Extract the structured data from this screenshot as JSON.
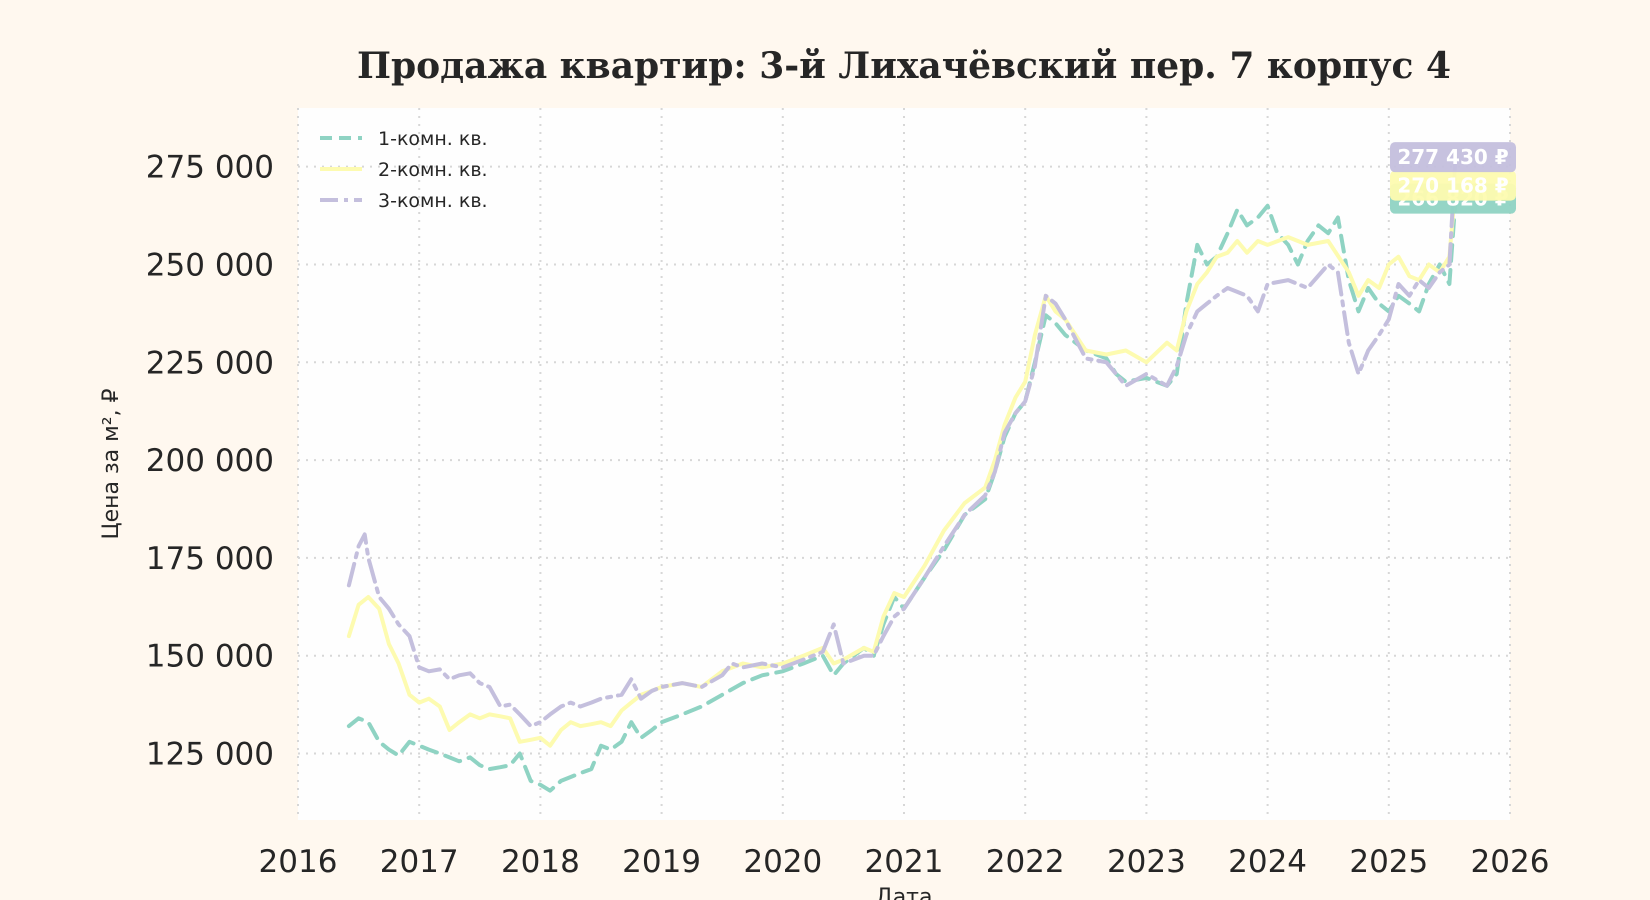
{
  "chart_data": {
    "type": "line",
    "title": "Продажа квартир: 3-й Лихачёвский пер. 7 корпус 4",
    "xlabel": "Дата",
    "ylabel": "Цена за м², ₽",
    "xlim": [
      2016.0,
      2026.0
    ],
    "ylim": [
      108000,
      290000
    ],
    "x_ticks": [
      "2016",
      "2017",
      "2018",
      "2019",
      "2020",
      "2021",
      "2022",
      "2023",
      "2024",
      "2025",
      "2026"
    ],
    "y_ticks": [
      "125 000",
      "150 000",
      "175 000",
      "200 000",
      "225 000",
      "250 000",
      "275 000"
    ],
    "grid": true,
    "legend_position": "top-left",
    "series": [
      {
        "name": "1-комн. кв.",
        "color": "#8fd3c3",
        "style": "dashed",
        "last_value_label": "266 820 ₽",
        "points": [
          [
            2016.42,
            132000
          ],
          [
            2016.5,
            134000
          ],
          [
            2016.58,
            133000
          ],
          [
            2016.67,
            128000
          ],
          [
            2016.75,
            126000
          ],
          [
            2016.83,
            124500
          ],
          [
            2016.92,
            128000
          ],
          [
            2017.0,
            127000
          ],
          [
            2017.08,
            126000
          ],
          [
            2017.17,
            125000
          ],
          [
            2017.25,
            124000
          ],
          [
            2017.33,
            123000
          ],
          [
            2017.42,
            124000
          ],
          [
            2017.5,
            122000
          ],
          [
            2017.58,
            121000
          ],
          [
            2017.67,
            121500
          ],
          [
            2017.75,
            122000
          ],
          [
            2017.83,
            125000
          ],
          [
            2017.92,
            118000
          ],
          [
            2018.0,
            117000
          ],
          [
            2018.08,
            115500
          ],
          [
            2018.17,
            118000
          ],
          [
            2018.25,
            119000
          ],
          [
            2018.33,
            120000
          ],
          [
            2018.42,
            121000
          ],
          [
            2018.5,
            127000
          ],
          [
            2018.58,
            126000
          ],
          [
            2018.67,
            128000
          ],
          [
            2018.75,
            133000
          ],
          [
            2018.83,
            129000
          ],
          [
            2018.92,
            131000
          ],
          [
            2019.0,
            133000
          ],
          [
            2019.17,
            135000
          ],
          [
            2019.33,
            137000
          ],
          [
            2019.5,
            140000
          ],
          [
            2019.67,
            143000
          ],
          [
            2019.83,
            145000
          ],
          [
            2020.0,
            146000
          ],
          [
            2020.17,
            148000
          ],
          [
            2020.33,
            150000
          ],
          [
            2020.42,
            145000
          ],
          [
            2020.5,
            148000
          ],
          [
            2020.67,
            152000
          ],
          [
            2020.75,
            150000
          ],
          [
            2020.83,
            158000
          ],
          [
            2020.92,
            165000
          ],
          [
            2021.0,
            162000
          ],
          [
            2021.17,
            170000
          ],
          [
            2021.33,
            177000
          ],
          [
            2021.5,
            186000
          ],
          [
            2021.67,
            190000
          ],
          [
            2021.75,
            197000
          ],
          [
            2021.83,
            206000
          ],
          [
            2021.92,
            212000
          ],
          [
            2022.0,
            215000
          ],
          [
            2022.08,
            225000
          ],
          [
            2022.17,
            237000
          ],
          [
            2022.25,
            235000
          ],
          [
            2022.33,
            232000
          ],
          [
            2022.5,
            228000
          ],
          [
            2022.67,
            226000
          ],
          [
            2022.75,
            222000
          ],
          [
            2022.83,
            220000
          ],
          [
            2023.0,
            221000
          ],
          [
            2023.17,
            219000
          ],
          [
            2023.25,
            222000
          ],
          [
            2023.33,
            240000
          ],
          [
            2023.42,
            255000
          ],
          [
            2023.5,
            250000
          ],
          [
            2023.58,
            252000
          ],
          [
            2023.67,
            258000
          ],
          [
            2023.75,
            264000
          ],
          [
            2023.83,
            260000
          ],
          [
            2023.92,
            262000
          ],
          [
            2024.0,
            265000
          ],
          [
            2024.08,
            258000
          ],
          [
            2024.17,
            255000
          ],
          [
            2024.25,
            250000
          ],
          [
            2024.33,
            256000
          ],
          [
            2024.42,
            260000
          ],
          [
            2024.5,
            258000
          ],
          [
            2024.58,
            262000
          ],
          [
            2024.67,
            246000
          ],
          [
            2024.75,
            238000
          ],
          [
            2024.83,
            244000
          ],
          [
            2024.92,
            240000
          ],
          [
            2025.0,
            238000
          ],
          [
            2025.08,
            242000
          ],
          [
            2025.17,
            240000
          ],
          [
            2025.25,
            238000
          ],
          [
            2025.33,
            245000
          ],
          [
            2025.42,
            250000
          ],
          [
            2025.5,
            245000
          ],
          [
            2025.55,
            266820
          ]
        ]
      },
      {
        "name": "2-комн. кв.",
        "color": "#fdfbb0",
        "style": "solid",
        "last_value_label": "270 168 ₽",
        "points": [
          [
            2016.42,
            155000
          ],
          [
            2016.5,
            163000
          ],
          [
            2016.58,
            165000
          ],
          [
            2016.67,
            162000
          ],
          [
            2016.75,
            153000
          ],
          [
            2016.83,
            148000
          ],
          [
            2016.92,
            140000
          ],
          [
            2017.0,
            138000
          ],
          [
            2017.08,
            139000
          ],
          [
            2017.17,
            137000
          ],
          [
            2017.25,
            131000
          ],
          [
            2017.33,
            133000
          ],
          [
            2017.42,
            135000
          ],
          [
            2017.5,
            134000
          ],
          [
            2017.58,
            135000
          ],
          [
            2017.67,
            134500
          ],
          [
            2017.75,
            134000
          ],
          [
            2017.83,
            128000
          ],
          [
            2017.92,
            128500
          ],
          [
            2018.0,
            129000
          ],
          [
            2018.08,
            127000
          ],
          [
            2018.17,
            131000
          ],
          [
            2018.25,
            133000
          ],
          [
            2018.33,
            132000
          ],
          [
            2018.42,
            132500
          ],
          [
            2018.5,
            133000
          ],
          [
            2018.58,
            132000
          ],
          [
            2018.67,
            136000
          ],
          [
            2018.75,
            138000
          ],
          [
            2018.83,
            140000
          ],
          [
            2018.92,
            141000
          ],
          [
            2019.0,
            142000
          ],
          [
            2019.17,
            143000
          ],
          [
            2019.33,
            142000
          ],
          [
            2019.5,
            146000
          ],
          [
            2019.67,
            148000
          ],
          [
            2019.83,
            147000
          ],
          [
            2020.0,
            148000
          ],
          [
            2020.17,
            150000
          ],
          [
            2020.33,
            152000
          ],
          [
            2020.42,
            148000
          ],
          [
            2020.5,
            149000
          ],
          [
            2020.67,
            152000
          ],
          [
            2020.75,
            151000
          ],
          [
            2020.83,
            160000
          ],
          [
            2020.92,
            166000
          ],
          [
            2021.0,
            165000
          ],
          [
            2021.17,
            173000
          ],
          [
            2021.33,
            182000
          ],
          [
            2021.5,
            189000
          ],
          [
            2021.67,
            193000
          ],
          [
            2021.75,
            200000
          ],
          [
            2021.83,
            209000
          ],
          [
            2021.92,
            216000
          ],
          [
            2022.0,
            220000
          ],
          [
            2022.08,
            232000
          ],
          [
            2022.17,
            242000
          ],
          [
            2022.25,
            238000
          ],
          [
            2022.33,
            236000
          ],
          [
            2022.5,
            228000
          ],
          [
            2022.67,
            227000
          ],
          [
            2022.83,
            228000
          ],
          [
            2023.0,
            225000
          ],
          [
            2023.17,
            230000
          ],
          [
            2023.25,
            228000
          ],
          [
            2023.33,
            238000
          ],
          [
            2023.42,
            245000
          ],
          [
            2023.5,
            248000
          ],
          [
            2023.58,
            252000
          ],
          [
            2023.67,
            253000
          ],
          [
            2023.75,
            256000
          ],
          [
            2023.83,
            253000
          ],
          [
            2023.92,
            256000
          ],
          [
            2024.0,
            255000
          ],
          [
            2024.17,
            257000
          ],
          [
            2024.33,
            255000
          ],
          [
            2024.5,
            256000
          ],
          [
            2024.67,
            248000
          ],
          [
            2024.75,
            242000
          ],
          [
            2024.83,
            246000
          ],
          [
            2024.92,
            244000
          ],
          [
            2025.0,
            250000
          ],
          [
            2025.08,
            252000
          ],
          [
            2025.17,
            247000
          ],
          [
            2025.25,
            246000
          ],
          [
            2025.33,
            250000
          ],
          [
            2025.42,
            248000
          ],
          [
            2025.5,
            252000
          ],
          [
            2025.55,
            270168
          ]
        ]
      },
      {
        "name": "3-комн. кв.",
        "color": "#c4bfdd",
        "style": "dashdot",
        "last_value_label": "277 430 ₽",
        "points": [
          [
            2016.42,
            168000
          ],
          [
            2016.5,
            178000
          ],
          [
            2016.55,
            181000
          ],
          [
            2016.58,
            175000
          ],
          [
            2016.67,
            165000
          ],
          [
            2016.75,
            162000
          ],
          [
            2016.83,
            158000
          ],
          [
            2016.92,
            155000
          ],
          [
            2017.0,
            147000
          ],
          [
            2017.08,
            146000
          ],
          [
            2017.17,
            146500
          ],
          [
            2017.25,
            144000
          ],
          [
            2017.33,
            145000
          ],
          [
            2017.42,
            145500
          ],
          [
            2017.5,
            143000
          ],
          [
            2017.58,
            142000
          ],
          [
            2017.67,
            137000
          ],
          [
            2017.75,
            137500
          ],
          [
            2017.83,
            135000
          ],
          [
            2017.92,
            132000
          ],
          [
            2018.0,
            133000
          ],
          [
            2018.08,
            135000
          ],
          [
            2018.17,
            137000
          ],
          [
            2018.25,
            138000
          ],
          [
            2018.33,
            137000
          ],
          [
            2018.42,
            138000
          ],
          [
            2018.5,
            139000
          ],
          [
            2018.58,
            139500
          ],
          [
            2018.67,
            140000
          ],
          [
            2018.75,
            144000
          ],
          [
            2018.83,
            139000
          ],
          [
            2018.92,
            141000
          ],
          [
            2019.0,
            142000
          ],
          [
            2019.17,
            143000
          ],
          [
            2019.33,
            142000
          ],
          [
            2019.5,
            145000
          ],
          [
            2019.58,
            148000
          ],
          [
            2019.67,
            147000
          ],
          [
            2019.83,
            148000
          ],
          [
            2020.0,
            147000
          ],
          [
            2020.17,
            149000
          ],
          [
            2020.33,
            151000
          ],
          [
            2020.42,
            158000
          ],
          [
            2020.5,
            148000
          ],
          [
            2020.67,
            150000
          ],
          [
            2020.75,
            150000
          ],
          [
            2020.83,
            155000
          ],
          [
            2020.92,
            160000
          ],
          [
            2021.0,
            162000
          ],
          [
            2021.17,
            170000
          ],
          [
            2021.33,
            178000
          ],
          [
            2021.5,
            186000
          ],
          [
            2021.67,
            191000
          ],
          [
            2021.75,
            197000
          ],
          [
            2021.83,
            207000
          ],
          [
            2021.92,
            212000
          ],
          [
            2022.0,
            215000
          ],
          [
            2022.08,
            224000
          ],
          [
            2022.17,
            242000
          ],
          [
            2022.25,
            240000
          ],
          [
            2022.33,
            236000
          ],
          [
            2022.5,
            226000
          ],
          [
            2022.67,
            225000
          ],
          [
            2022.75,
            222000
          ],
          [
            2022.83,
            219000
          ],
          [
            2023.0,
            222000
          ],
          [
            2023.17,
            219000
          ],
          [
            2023.25,
            224000
          ],
          [
            2023.33,
            232000
          ],
          [
            2023.42,
            238000
          ],
          [
            2023.5,
            240000
          ],
          [
            2023.58,
            242000
          ],
          [
            2023.67,
            244000
          ],
          [
            2023.75,
            243000
          ],
          [
            2023.83,
            242000
          ],
          [
            2023.92,
            238000
          ],
          [
            2024.0,
            245000
          ],
          [
            2024.17,
            246000
          ],
          [
            2024.33,
            244000
          ],
          [
            2024.5,
            250000
          ],
          [
            2024.58,
            248000
          ],
          [
            2024.67,
            230000
          ],
          [
            2024.75,
            222000
          ],
          [
            2024.83,
            228000
          ],
          [
            2024.92,
            232000
          ],
          [
            2025.0,
            236000
          ],
          [
            2025.08,
            245000
          ],
          [
            2025.17,
            242000
          ],
          [
            2025.25,
            246000
          ],
          [
            2025.33,
            244000
          ],
          [
            2025.42,
            248000
          ],
          [
            2025.5,
            250000
          ],
          [
            2025.55,
            277430
          ]
        ]
      }
    ]
  }
}
